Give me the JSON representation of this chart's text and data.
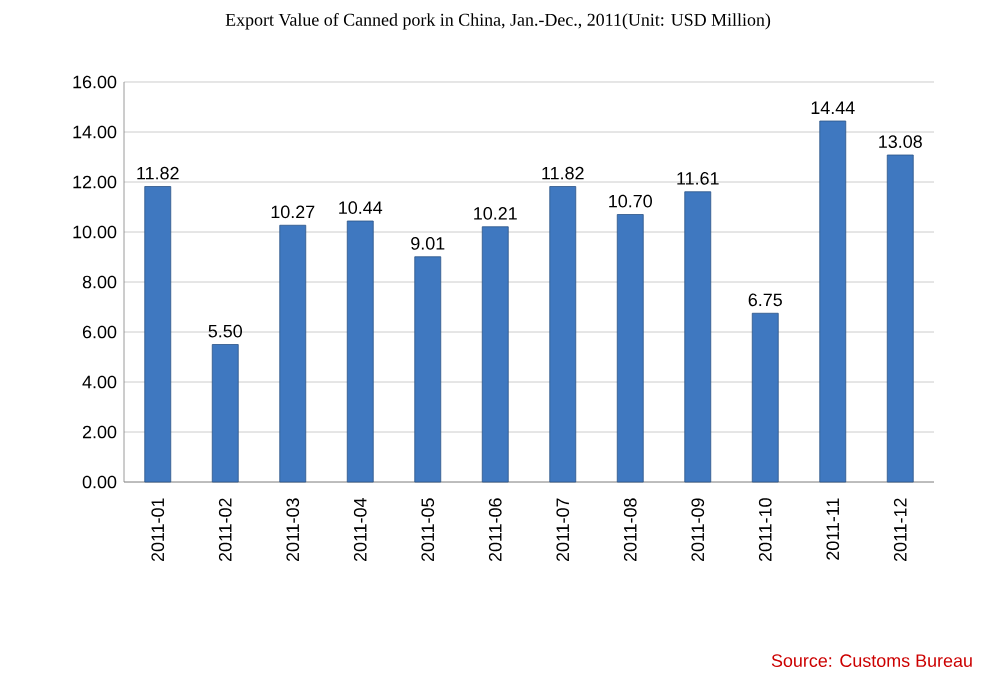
{
  "chart_data": {
    "type": "bar",
    "title": "Export Value of Canned pork in China, Jan.-Dec., 2011(Unit: USD Million)",
    "categories": [
      "2011-01",
      "2011-02",
      "2011-03",
      "2011-04",
      "2011-05",
      "2011-06",
      "2011-07",
      "2011-08",
      "2011-09",
      "2011-10",
      "2011-11",
      "2011-12"
    ],
    "values": [
      11.82,
      5.5,
      10.27,
      10.44,
      9.01,
      10.21,
      11.82,
      10.7,
      11.61,
      6.75,
      14.44,
      13.08
    ],
    "value_labels": [
      "11.82",
      "5.50",
      "10.27",
      "10.44",
      "9.01",
      "10.21",
      "11.82",
      "10.70",
      "11.61",
      "6.75",
      "14.44",
      "13.08"
    ],
    "color": "#3f78c0",
    "ylim": [
      0,
      16
    ],
    "yticks": [
      {
        "value": 0,
        "label": "0.00"
      },
      {
        "value": 2,
        "label": "2.00"
      },
      {
        "value": 4,
        "label": "4.00"
      },
      {
        "value": 6,
        "label": "6.00"
      },
      {
        "value": 8,
        "label": "8.00"
      },
      {
        "value": 10,
        "label": "10.00"
      },
      {
        "value": 12,
        "label": "12.00"
      },
      {
        "value": 14,
        "label": "14.00"
      },
      {
        "value": 16,
        "label": "16.00"
      }
    ],
    "grid": true,
    "annotations": [
      "Source: Customs Bureau"
    ]
  }
}
